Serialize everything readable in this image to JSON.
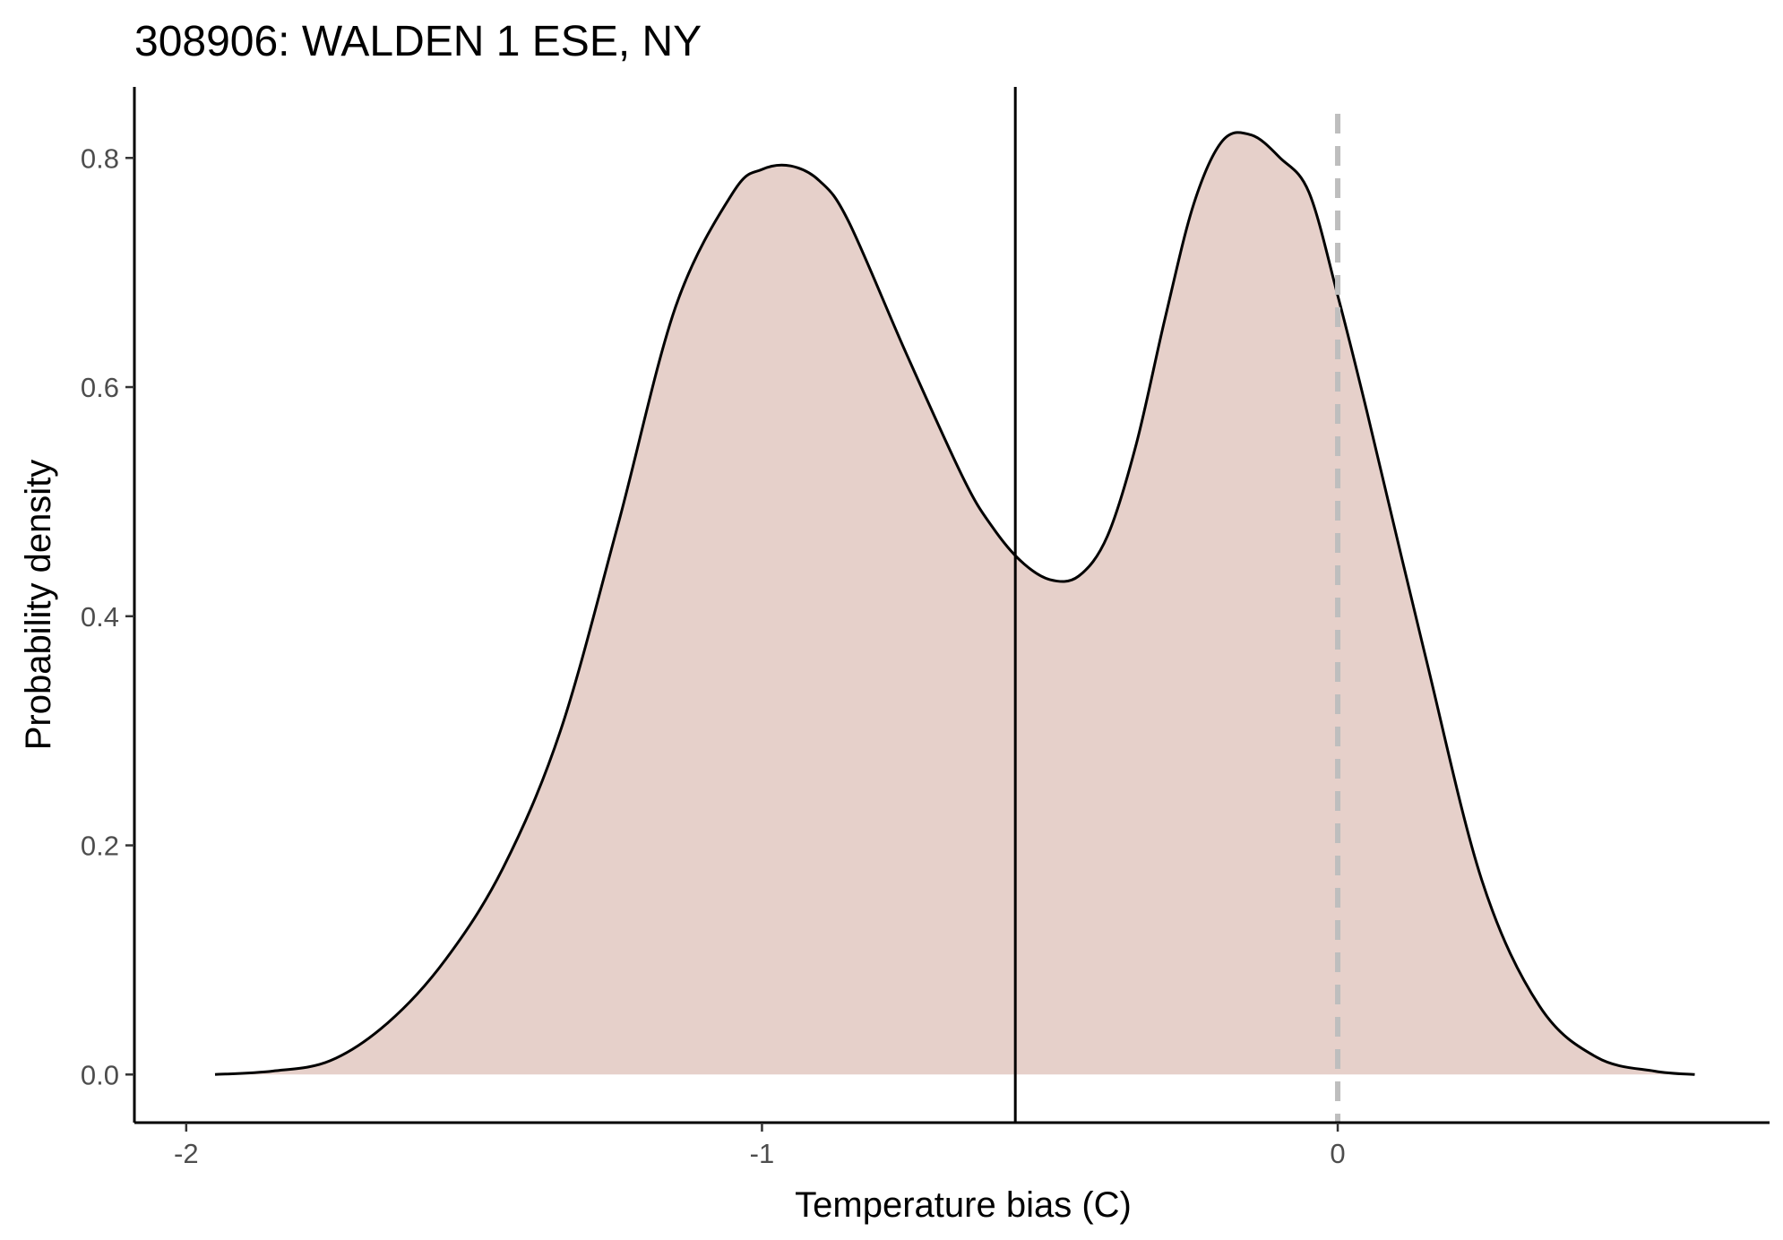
{
  "chart_data": {
    "type": "area",
    "title": "308906: WALDEN 1 ESE, NY",
    "xlabel": "Temperature bias (C)",
    "ylabel": "Probability density",
    "xlim": [
      -2.09,
      0.75
    ],
    "ylim": [
      -0.042,
      0.862
    ],
    "x_ticks": [
      -2,
      -1,
      0
    ],
    "x_tick_labels": [
      "-2",
      "-1",
      "0"
    ],
    "y_ticks": [
      0.0,
      0.2,
      0.4,
      0.6,
      0.8
    ],
    "y_tick_labels": [
      "0.0",
      "0.2",
      "0.4",
      "0.6",
      "0.8"
    ],
    "grid": false,
    "fill_color": "#e6d0ca",
    "line_color": "#000000",
    "series": [
      {
        "x": [
          -1.95,
          -1.85,
          -1.75,
          -1.65,
          -1.55,
          -1.45,
          -1.35,
          -1.25,
          -1.15,
          -1.05,
          -1.0,
          -0.95,
          -0.9,
          -0.85,
          -0.75,
          -0.65,
          -0.6,
          -0.55,
          -0.5,
          -0.45,
          -0.4,
          -0.35,
          -0.3,
          -0.25,
          -0.2,
          -0.15,
          -0.1,
          -0.05,
          0.0,
          0.05,
          0.15,
          0.25,
          0.35,
          0.45,
          0.55,
          0.62
        ],
        "y": [
          0.0,
          0.003,
          0.012,
          0.045,
          0.1,
          0.18,
          0.3,
          0.48,
          0.67,
          0.77,
          0.79,
          0.793,
          0.78,
          0.745,
          0.63,
          0.52,
          0.478,
          0.448,
          0.432,
          0.435,
          0.47,
          0.55,
          0.66,
          0.76,
          0.815,
          0.82,
          0.8,
          0.77,
          0.68,
          0.58,
          0.37,
          0.17,
          0.06,
          0.015,
          0.003,
          0.0
        ]
      }
    ],
    "reference_lines": [
      {
        "x": -0.56,
        "style": "solid",
        "color": "#000000"
      },
      {
        "x": 0.0,
        "style": "dashed",
        "color": "#bebebe"
      }
    ]
  }
}
